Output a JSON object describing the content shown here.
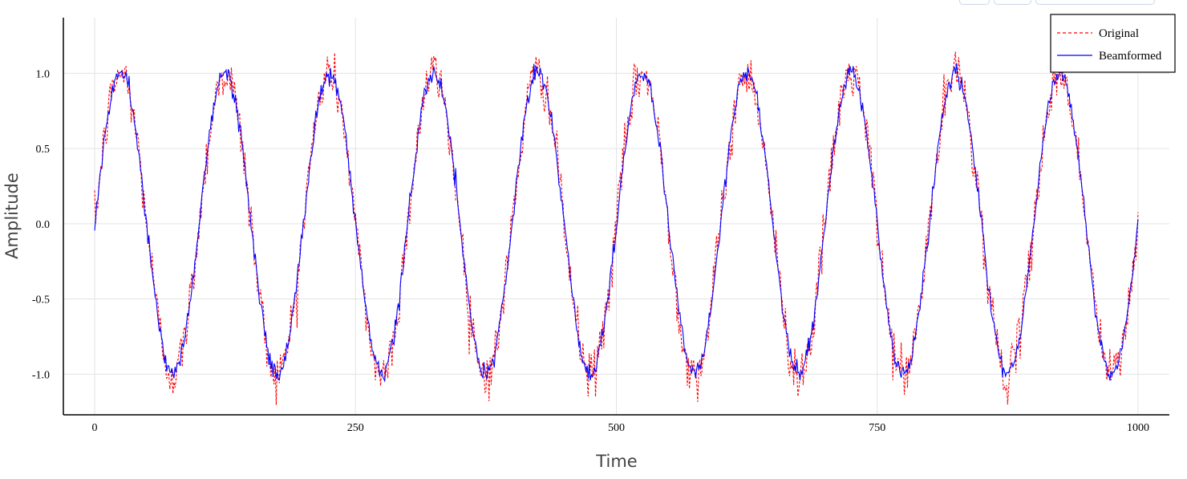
{
  "chart_data": {
    "type": "line",
    "title": "",
    "xlabel": "Time",
    "ylabel": "Amplitude",
    "xlim": [
      -30,
      1030
    ],
    "ylim": [
      -1.27,
      1.37
    ],
    "xticks": [
      0,
      250,
      500,
      750,
      1000
    ],
    "xtick_labels": [
      "0",
      "250",
      "500",
      "750",
      "1000"
    ],
    "yticks": [
      1.0,
      0.5,
      0.0,
      -0.5,
      -1.0
    ],
    "ytick_labels": [
      "1.0",
      "0.5",
      "0.0",
      "-0.5",
      "-1.0"
    ],
    "grid": true,
    "legend_position": "top-right",
    "signal": {
      "amplitude": 1.0,
      "cycles": 10,
      "x_start": 0,
      "x_end": 1000,
      "samples": 1001
    },
    "series": [
      {
        "name": "Original",
        "color": "#ff0000",
        "style": "dashed",
        "noise_std": 0.08
      },
      {
        "name": "Beamformed",
        "color": "#0000ff",
        "style": "solid",
        "noise_std": 0.03
      }
    ]
  },
  "toolbar": {
    "icons": [
      "toolbar-button-icon",
      "toolbar-button-icon",
      "toolbar-button-icon"
    ]
  }
}
